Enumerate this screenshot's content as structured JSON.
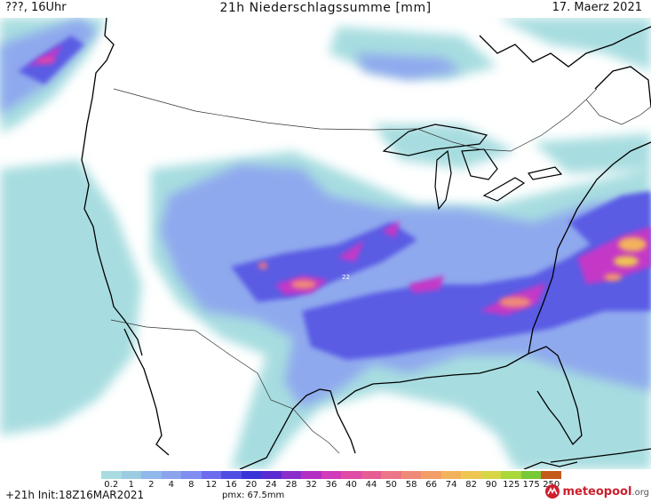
{
  "header": {
    "left": "???, 16Uhr",
    "title": "21h Niederschlagssumme [mm]",
    "date": "17. Maerz 2021"
  },
  "footer": {
    "left": "+21h Init:18Z16MAR2021",
    "pmx": "pmx: 67.5mm"
  },
  "map_label": "22",
  "logo": {
    "text": "meteopool",
    "suffix": ".org"
  },
  "legend": {
    "ticks": [
      "0.2",
      "1",
      "2",
      "4",
      "8",
      "12",
      "16",
      "20",
      "24",
      "28",
      "32",
      "36",
      "40",
      "44",
      "50",
      "58",
      "66",
      "74",
      "82",
      "90",
      "125",
      "175",
      "250"
    ],
    "colors": [
      "#a8dce0",
      "#9ccbe2",
      "#8fb9ea",
      "#8aa4ee",
      "#7f8ef0",
      "#6c6cec",
      "#4f4ee3",
      "#3a33d6",
      "#5a2bd0",
      "#8a2ecb",
      "#b32fc4",
      "#d13ab8",
      "#e04aa7",
      "#e65c95",
      "#ec7588",
      "#f08a78",
      "#f39e67",
      "#f3b35c",
      "#efc651",
      "#d7d646",
      "#a9d838",
      "#77c935",
      "#c35a1c"
    ]
  }
}
